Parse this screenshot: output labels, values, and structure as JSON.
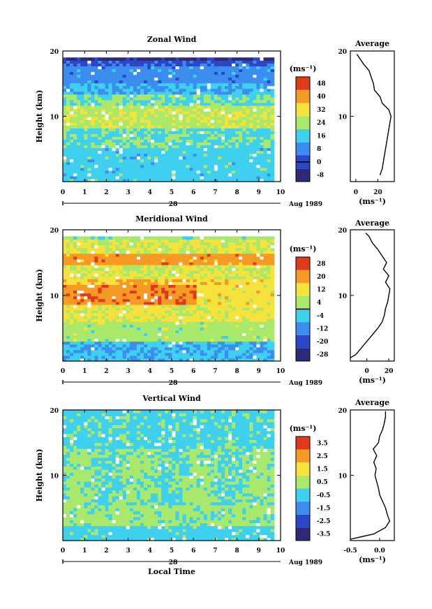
{
  "figure": {
    "xlabel": "Local Time",
    "date_label": "Aug 1989",
    "day_label": "28"
  },
  "chart_data": [
    {
      "type": "heatmap",
      "title": "Zonal Wind",
      "xlabel": "Local Time",
      "ylabel": "Height (km)",
      "xlim": [
        0,
        10
      ],
      "ylim": [
        0,
        20
      ],
      "xticks": [
        0,
        1,
        2,
        3,
        4,
        5,
        6,
        7,
        8,
        9,
        10
      ],
      "yticks": [
        10,
        20
      ],
      "colorbar": {
        "unit": "(ms⁻¹)",
        "levels": [
          -8,
          0,
          8,
          16,
          24,
          32,
          40,
          48
        ],
        "tick_labels": [
          "-8",
          "0",
          "8",
          "16",
          "24",
          "32",
          "40",
          "48"
        ],
        "zero_line": 0
      },
      "profile": [
        {
          "h": 1,
          "v": 22
        },
        {
          "h": 2,
          "v": 24
        },
        {
          "h": 3,
          "v": 25
        },
        {
          "h": 4,
          "v": 26
        },
        {
          "h": 5,
          "v": 27
        },
        {
          "h": 6,
          "v": 28
        },
        {
          "h": 7,
          "v": 29
        },
        {
          "h": 8,
          "v": 30
        },
        {
          "h": 9,
          "v": 31
        },
        {
          "h": 10,
          "v": 32
        },
        {
          "h": 11,
          "v": 30
        },
        {
          "h": 12,
          "v": 24
        },
        {
          "h": 13,
          "v": 22
        },
        {
          "h": 14,
          "v": 17
        },
        {
          "h": 15,
          "v": 16
        },
        {
          "h": 16,
          "v": 14
        },
        {
          "h": 17,
          "v": 12
        },
        {
          "h": 18,
          "v": 7
        },
        {
          "h": 19,
          "v": 3
        },
        {
          "h": 19.5,
          "v": 1
        }
      ],
      "profile_title": "Average",
      "profile_xlabel": "(ms⁻¹)",
      "profile_xlim": [
        -5,
        35
      ],
      "profile_xticks": [
        0,
        20
      ]
    },
    {
      "type": "heatmap",
      "title": "Meridional Wind",
      "xlabel": "Local Time",
      "ylabel": "Height (km)",
      "xlim": [
        0,
        10
      ],
      "ylim": [
        0,
        20
      ],
      "xticks": [
        0,
        1,
        2,
        3,
        4,
        5,
        6,
        7,
        8,
        9,
        10
      ],
      "yticks": [
        10,
        20
      ],
      "colorbar": {
        "unit": "(ms⁻¹)",
        "levels": [
          -28,
          -20,
          -12,
          -4,
          4,
          12,
          20,
          28
        ],
        "tick_labels": [
          "-28",
          "-20",
          "-12",
          "-4",
          "4",
          "12",
          "20",
          "28"
        ],
        "zero_line": 0
      },
      "profile": [
        {
          "h": 0.5,
          "v": -15
        },
        {
          "h": 1,
          "v": -10
        },
        {
          "h": 2,
          "v": -5
        },
        {
          "h": 3,
          "v": 0
        },
        {
          "h": 4,
          "v": 5
        },
        {
          "h": 5,
          "v": 10
        },
        {
          "h": 6,
          "v": 14
        },
        {
          "h": 7,
          "v": 16
        },
        {
          "h": 8,
          "v": 17
        },
        {
          "h": 9,
          "v": 19
        },
        {
          "h": 10,
          "v": 20
        },
        {
          "h": 11,
          "v": 21
        },
        {
          "h": 12,
          "v": 17
        },
        {
          "h": 13,
          "v": 20
        },
        {
          "h": 14,
          "v": 15
        },
        {
          "h": 15,
          "v": 18
        },
        {
          "h": 16,
          "v": 14
        },
        {
          "h": 17,
          "v": 10
        },
        {
          "h": 18,
          "v": 5
        },
        {
          "h": 19,
          "v": 2
        },
        {
          "h": 19.5,
          "v": -1
        }
      ],
      "profile_title": "Average",
      "profile_xlabel": "(ms⁻¹)",
      "profile_xlim": [
        -15,
        25
      ],
      "profile_xticks": [
        0,
        20
      ]
    },
    {
      "type": "heatmap",
      "title": "Vertical Wind",
      "xlabel": "Local Time",
      "ylabel": "Height (km)",
      "xlim": [
        0,
        10
      ],
      "ylim": [
        0,
        20
      ],
      "xticks": [
        0,
        1,
        2,
        3,
        4,
        5,
        6,
        7,
        8,
        9,
        10
      ],
      "yticks": [
        10,
        20
      ],
      "colorbar": {
        "unit": "(ms⁻¹)",
        "levels": [
          -3.5,
          -2.5,
          -1.5,
          -0.5,
          0.5,
          1.5,
          2.5,
          3.5
        ],
        "tick_labels": [
          "-3.5",
          "-2.5",
          "-1.5",
          "-0.5",
          "0.5",
          "1.5",
          "2.5",
          "3.5"
        ],
        "zero_line": null
      },
      "profile": [
        {
          "h": 0.2,
          "v": -0.5
        },
        {
          "h": 1,
          "v": -0.1
        },
        {
          "h": 2,
          "v": 0.1
        },
        {
          "h": 3,
          "v": 0.17
        },
        {
          "h": 4,
          "v": 0.13
        },
        {
          "h": 5,
          "v": 0.1
        },
        {
          "h": 6,
          "v": 0.05
        },
        {
          "h": 7,
          "v": 0.0
        },
        {
          "h": 8,
          "v": -0.02
        },
        {
          "h": 9,
          "v": -0.05
        },
        {
          "h": 10,
          "v": -0.08
        },
        {
          "h": 11,
          "v": -0.06
        },
        {
          "h": 12,
          "v": -0.1
        },
        {
          "h": 13,
          "v": -0.05
        },
        {
          "h": 14,
          "v": -0.11
        },
        {
          "h": 15,
          "v": -0.02
        },
        {
          "h": 16,
          "v": 0.0
        },
        {
          "h": 17,
          "v": 0.05
        },
        {
          "h": 18,
          "v": 0.08
        },
        {
          "h": 19,
          "v": 0.1
        },
        {
          "h": 19.8,
          "v": 0.1
        }
      ],
      "profile_title": "Average",
      "profile_xlabel": "(ms⁻¹)",
      "profile_xlim": [
        -0.5,
        0.25
      ],
      "profile_xticks": [
        -0.5,
        0.0
      ],
      "profile_tick_labels": [
        "-0.5",
        "0.0"
      ]
    }
  ],
  "colors": {
    "palette": [
      "#2b2b7a",
      "#2c46c8",
      "#3b8ef0",
      "#3fd0ef",
      "#a8e86a",
      "#f5e23a",
      "#f59a22",
      "#e03a1a"
    ]
  }
}
